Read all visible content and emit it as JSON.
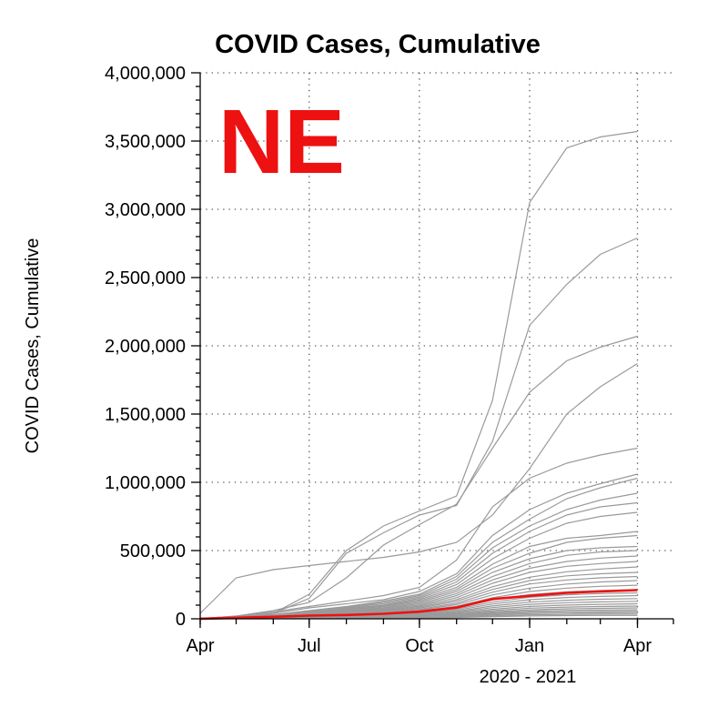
{
  "chart_data": {
    "type": "line",
    "title": "COVID Cases, Cumulative",
    "ylabel": "COVID Cases, Cumulative",
    "xlabel": "2020 - 2021",
    "state_label": "NE",
    "highlight_color": "#ee1111",
    "other_color": "#9a9a9a",
    "grid": true,
    "ylim": [
      0,
      4000000
    ],
    "xlim": [
      "2020-04-01",
      "2021-05-01"
    ],
    "y_ticks": [
      {
        "value": 0,
        "label": "0"
      },
      {
        "value": 500000,
        "label": "500,000"
      },
      {
        "value": 1000000,
        "label": "1,000,000"
      },
      {
        "value": 1500000,
        "label": "1,500,000"
      },
      {
        "value": 2000000,
        "label": "2,000,000"
      },
      {
        "value": 2500000,
        "label": "2,500,000"
      },
      {
        "value": 3000000,
        "label": "3,000,000"
      },
      {
        "value": 3500000,
        "label": "3,500,000"
      },
      {
        "value": 4000000,
        "label": "4,000,000"
      }
    ],
    "x_ticks": [
      {
        "date": "2020-04-01",
        "label": "Apr"
      },
      {
        "date": "2020-07-01",
        "label": "Jul"
      },
      {
        "date": "2020-10-01",
        "label": "Oct"
      },
      {
        "date": "2021-01-01",
        "label": "Jan"
      },
      {
        "date": "2021-04-01",
        "label": "Apr"
      }
    ],
    "x_dates": [
      "2020-04-01",
      "2020-05-01",
      "2020-06-01",
      "2020-07-01",
      "2020-08-01",
      "2020-09-01",
      "2020-10-01",
      "2020-11-01",
      "2020-12-01",
      "2021-01-01",
      "2021-02-01",
      "2021-03-01",
      "2021-04-01"
    ],
    "highlight_series": {
      "values": [
        1000,
        8000,
        15000,
        23000,
        28000,
        37000,
        52000,
        82000,
        145000,
        168000,
        190000,
        200000,
        210000
      ]
    },
    "other_series": [
      {
        "values": [
          2000,
          10000,
          40000,
          180000,
          500000,
          680000,
          790000,
          900000,
          1600000,
          3050000,
          3450000,
          3530000,
          3570000
        ]
      },
      {
        "values": [
          2000,
          10000,
          40000,
          150000,
          480000,
          630000,
          760000,
          830000,
          1300000,
          2150000,
          2450000,
          2670000,
          2790000
        ]
      },
      {
        "values": [
          2000,
          20000,
          60000,
          120000,
          300000,
          540000,
          690000,
          840000,
          1250000,
          1660000,
          1890000,
          1990000,
          2070000
        ]
      },
      {
        "values": [
          40000,
          300000,
          360000,
          390000,
          420000,
          450000,
          490000,
          560000,
          760000,
          1100000,
          1500000,
          1700000,
          1870000
        ]
      },
      {
        "values": [
          2000,
          20000,
          50000,
          90000,
          130000,
          170000,
          230000,
          430000,
          820000,
          1030000,
          1140000,
          1200000,
          1250000
        ]
      },
      {
        "values": [
          2000,
          15000,
          40000,
          80000,
          110000,
          140000,
          200000,
          330000,
          610000,
          800000,
          920000,
          990000,
          1060000
        ]
      },
      {
        "values": [
          2000,
          12000,
          30000,
          60000,
          90000,
          130000,
          180000,
          310000,
          560000,
          730000,
          880000,
          960000,
          1030000
        ]
      },
      {
        "values": [
          1500,
          10000,
          28000,
          55000,
          85000,
          120000,
          170000,
          290000,
          520000,
          680000,
          800000,
          870000,
          920000
        ]
      },
      {
        "values": [
          1500,
          10000,
          25000,
          50000,
          80000,
          110000,
          160000,
          270000,
          480000,
          640000,
          760000,
          820000,
          850000
        ]
      },
      {
        "values": [
          1500,
          9000,
          22000,
          45000,
          75000,
          100000,
          150000,
          250000,
          440000,
          590000,
          700000,
          750000,
          780000
        ]
      },
      {
        "values": [
          1200,
          8000,
          20000,
          40000,
          70000,
          95000,
          140000,
          230000,
          400000,
          530000,
          590000,
          610000,
          640000
        ]
      },
      {
        "values": [
          1200,
          8000,
          18000,
          38000,
          65000,
          90000,
          130000,
          215000,
          370000,
          480000,
          560000,
          590000,
          610000
        ]
      },
      {
        "values": [
          1000,
          7000,
          16000,
          34000,
          60000,
          82000,
          120000,
          200000,
          340000,
          440000,
          500000,
          520000,
          530000
        ]
      },
      {
        "values": [
          1000,
          7000,
          15000,
          32000,
          56000,
          78000,
          110000,
          185000,
          310000,
          405000,
          465000,
          490000,
          500000
        ]
      },
      {
        "values": [
          900,
          6000,
          14000,
          30000,
          52000,
          72000,
          100000,
          170000,
          285000,
          370000,
          420000,
          445000,
          460000
        ]
      },
      {
        "values": [
          900,
          6000,
          13000,
          28000,
          48000,
          66000,
          92000,
          155000,
          260000,
          340000,
          385000,
          405000,
          420000
        ]
      },
      {
        "values": [
          800,
          5000,
          12000,
          26000,
          44000,
          60000,
          85000,
          140000,
          235000,
          305000,
          345000,
          365000,
          380000
        ]
      },
      {
        "values": [
          800,
          5000,
          11000,
          24000,
          40000,
          55000,
          78000,
          128000,
          215000,
          280000,
          315000,
          330000,
          340000
        ]
      },
      {
        "values": [
          700,
          4500,
          10000,
          22000,
          36000,
          50000,
          70000,
          115000,
          195000,
          255000,
          285000,
          300000,
          310000
        ]
      },
      {
        "values": [
          700,
          4000,
          9000,
          20000,
          33000,
          45000,
          63000,
          104000,
          175000,
          225000,
          255000,
          270000,
          280000
        ]
      },
      {
        "values": [
          600,
          3500,
          8000,
          18000,
          30000,
          41000,
          57000,
          92000,
          155000,
          200000,
          225000,
          238000,
          246000
        ]
      },
      {
        "values": [
          600,
          3000,
          7000,
          16000,
          27000,
          37000,
          51000,
          82000,
          138000,
          178000,
          198000,
          208000,
          215000
        ]
      },
      {
        "values": [
          500,
          2800,
          6500,
          14000,
          24000,
          33000,
          45000,
          72000,
          122000,
          158000,
          176000,
          185000,
          190000
        ]
      },
      {
        "values": [
          500,
          2500,
          6000,
          12000,
          21000,
          29000,
          40000,
          63000,
          108000,
          140000,
          156000,
          164000,
          170000
        ]
      },
      {
        "values": [
          400,
          2200,
          5000,
          10000,
          18000,
          25000,
          35000,
          55000,
          94000,
          122000,
          136000,
          143000,
          148000
        ]
      },
      {
        "values": [
          400,
          2000,
          4500,
          9000,
          16000,
          22000,
          30000,
          48000,
          82000,
          106000,
          118000,
          124000,
          128000
        ]
      },
      {
        "values": [
          300,
          1800,
          4000,
          8000,
          14000,
          19000,
          26000,
          41000,
          70000,
          91000,
          101000,
          106000,
          110000
        ]
      },
      {
        "values": [
          300,
          1500,
          3500,
          7000,
          12000,
          16000,
          22000,
          35000,
          60000,
          78000,
          86000,
          90000,
          93000
        ]
      },
      {
        "values": [
          250,
          1300,
          3000,
          6000,
          10000,
          14000,
          19000,
          30000,
          51000,
          66000,
          73000,
          77000,
          80000
        ]
      },
      {
        "values": [
          200,
          1100,
          2500,
          5000,
          8500,
          12000,
          16000,
          25000,
          43000,
          56000,
          62000,
          65000,
          67000
        ]
      },
      {
        "values": [
          200,
          900,
          2000,
          4000,
          7000,
          10000,
          13000,
          21000,
          36000,
          47000,
          52000,
          54000,
          56000
        ]
      },
      {
        "values": [
          150,
          700,
          1600,
          3200,
          5600,
          8000,
          10500,
          17000,
          29000,
          38000,
          42000,
          44000,
          45000
        ]
      },
      {
        "values": [
          100,
          500,
          1200,
          2500,
          4300,
          6200,
          8200,
          13000,
          22000,
          29000,
          32000,
          34000,
          35000
        ]
      },
      {
        "values": [
          100,
          400,
          900,
          1800,
          3100,
          4500,
          6000,
          9500,
          16000,
          21000,
          23000,
          24500,
          25000
        ]
      }
    ]
  }
}
